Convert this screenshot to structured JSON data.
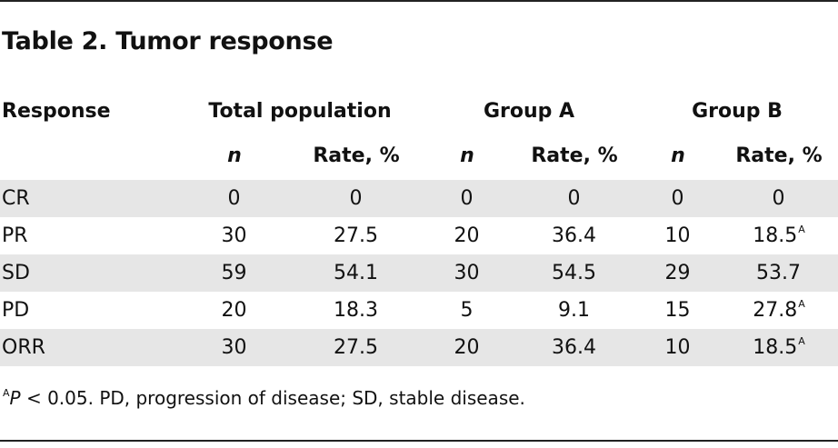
{
  "title": "Table 2. Tumor response",
  "header": {
    "response": "Response",
    "groups": [
      "Total population",
      "Group A",
      "Group B"
    ],
    "n_label": "n",
    "rate_label": "Rate, %"
  },
  "rows": [
    {
      "label": "CR",
      "cells": [
        "0",
        "0",
        "0",
        "0",
        "0",
        "0"
      ],
      "sup": [
        "",
        "",
        "",
        "",
        "",
        ""
      ]
    },
    {
      "label": "PR",
      "cells": [
        "30",
        "27.5",
        "20",
        "36.4",
        "10",
        "18.5"
      ],
      "sup": [
        "",
        "",
        "",
        "",
        "",
        "A"
      ]
    },
    {
      "label": "SD",
      "cells": [
        "59",
        "54.1",
        "30",
        "54.5",
        "29",
        "53.7"
      ],
      "sup": [
        "",
        "",
        "",
        "",
        "",
        ""
      ]
    },
    {
      "label": "PD",
      "cells": [
        "20",
        "18.3",
        "5",
        "9.1",
        "15",
        "27.8"
      ],
      "sup": [
        "",
        "",
        "",
        "",
        "",
        "A"
      ]
    },
    {
      "label": "ORR",
      "cells": [
        "30",
        "27.5",
        "20",
        "36.4",
        "10",
        "18.5"
      ],
      "sup": [
        "",
        "",
        "",
        "",
        "",
        "A"
      ]
    }
  ],
  "footnote": {
    "marker": "A",
    "p": "P",
    "text": " < 0.05. PD, progression of disease; SD, stable disease."
  }
}
